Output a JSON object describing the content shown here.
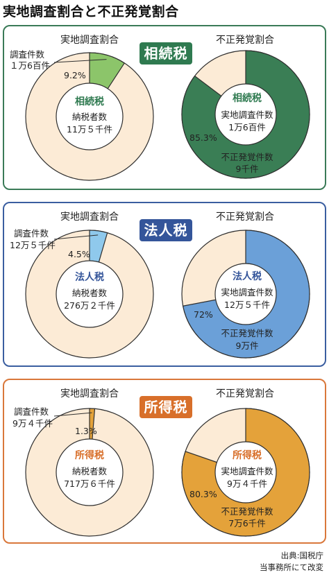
{
  "title": "実地調査割合と不正発覚割合",
  "panels": [
    {
      "badge": "相続税",
      "theme": {
        "border": "#3a7a57",
        "badge": "#2f7a50",
        "accent": "#3a7e55",
        "small_fill": "#8cc56a",
        "tax_text": "#2f7a50"
      },
      "left": {
        "title": "実地調査割合",
        "callout_label": "調査件数",
        "callout_value": "１万6百件",
        "pct_label": "9.2%",
        "center_tax": "相続税",
        "center_label": "納税者数",
        "center_value": "11万５千件"
      },
      "right": {
        "title": "不正発覚割合",
        "center_tax": "相続税",
        "center_label": "実地調査件数",
        "center_value": "1万6百件",
        "pct_label": "85.3%",
        "bottom_label": "不正発覚件数",
        "bottom_value": "9千件"
      }
    },
    {
      "badge": "法人税",
      "theme": {
        "border": "#3a5ea0",
        "badge": "#34559a",
        "accent": "#6ba0d8",
        "small_fill": "#8fc9ec",
        "tax_text": "#34559a"
      },
      "left": {
        "title": "実地調査割合",
        "callout_label": "調査件数",
        "callout_value": "12万５千件",
        "pct_label": "4.5%",
        "center_tax": "法人税",
        "center_label": "納税者数",
        "center_value": "276万２千件"
      },
      "right": {
        "title": "不正発覚割合",
        "center_tax": "法人税",
        "center_label": "実地調査件数",
        "center_value": "12万５千件",
        "pct_label": "72%",
        "bottom_label": "不正発覚件数",
        "bottom_value": "9万件"
      }
    },
    {
      "badge": "所得税",
      "theme": {
        "border": "#d9773a",
        "badge": "#d86f2a",
        "accent": "#e4a23a",
        "small_fill": "#e4a23a",
        "tax_text": "#d86f2a"
      },
      "left": {
        "title": "実地調査割合",
        "callout_label": "調査件数",
        "callout_value": "9万４千件",
        "pct_label": "1.3%",
        "center_tax": "所得税",
        "center_label": "納税者数",
        "center_value": "717万６千件"
      },
      "right": {
        "title": "不正発覚割合",
        "center_tax": "所得税",
        "center_label": "実地調査件数",
        "center_value": "9万４千件",
        "pct_label": "80.3%",
        "bottom_label": "不正発覚件数",
        "bottom_value": "7万6千件"
      }
    }
  ],
  "source_line1": "出典:国税庁",
  "source_line2": "当事務所にて改変",
  "chart_data": [
    {
      "type": "pie",
      "title": "実地調査割合",
      "group": "相続税",
      "slices": [
        {
          "label": "調査件数",
          "value": 9.2
        },
        {
          "label": "",
          "value": 90.8
        }
      ]
    },
    {
      "type": "pie",
      "title": "不正発覚割合",
      "group": "相続税",
      "slices": [
        {
          "label": "不正発覚件数",
          "value": 85.3
        },
        {
          "label": "",
          "value": 14.7
        }
      ]
    },
    {
      "type": "pie",
      "title": "実地調査割合",
      "group": "法人税",
      "slices": [
        {
          "label": "調査件数",
          "value": 4.5
        },
        {
          "label": "",
          "value": 95.5
        }
      ]
    },
    {
      "type": "pie",
      "title": "不正発覚割合",
      "group": "法人税",
      "slices": [
        {
          "label": "不正発覚件数",
          "value": 72
        },
        {
          "label": "",
          "value": 28
        }
      ]
    },
    {
      "type": "pie",
      "title": "実地調査割合",
      "group": "所得税",
      "slices": [
        {
          "label": "調査件数",
          "value": 1.3
        },
        {
          "label": "",
          "value": 98.7
        }
      ]
    },
    {
      "type": "pie",
      "title": "不正発覚割合",
      "group": "所得税",
      "slices": [
        {
          "label": "不正発覚件数",
          "value": 80.3
        },
        {
          "label": "",
          "value": 19.7
        }
      ]
    }
  ]
}
